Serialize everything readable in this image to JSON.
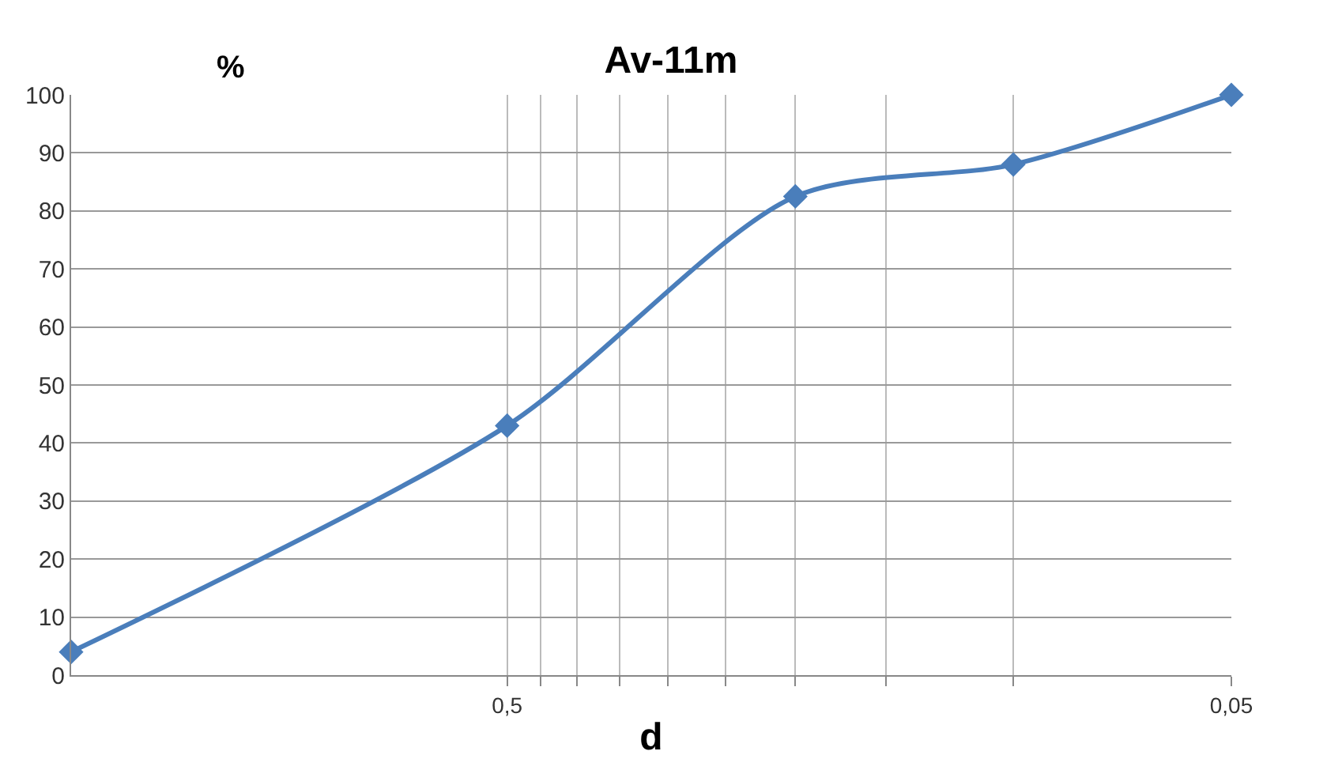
{
  "chart_data": {
    "type": "line",
    "title": "Av-11m",
    "xlabel": "d",
    "ylabel": "%",
    "x": [
      2,
      0.5,
      0.2,
      0.1,
      0.05
    ],
    "series": [
      {
        "color": "#4a7ebb",
        "values": [
          4,
          43,
          82.5,
          88,
          100
        ]
      }
    ],
    "log": "x",
    "xlim": [
      2,
      0.05
    ],
    "xticks": [
      {
        "value": 0.5,
        "label": "0,5"
      },
      {
        "value": 0.45,
        "label": null
      },
      {
        "value": 0.4,
        "label": null
      },
      {
        "value": 0.35,
        "label": null
      },
      {
        "value": 0.3,
        "label": null
      },
      {
        "value": 0.25,
        "label": null
      },
      {
        "value": 0.2,
        "label": null
      },
      {
        "value": 0.15,
        "label": null
      },
      {
        "value": 0.1,
        "label": null
      },
      {
        "value": 0.05,
        "label": "0,05"
      }
    ],
    "ylim": [
      0,
      100
    ],
    "yticks": [
      0,
      10,
      20,
      30,
      40,
      50,
      60,
      70,
      80,
      90,
      100
    ],
    "grid": true,
    "marker": "diamond",
    "line_style": "solid"
  }
}
